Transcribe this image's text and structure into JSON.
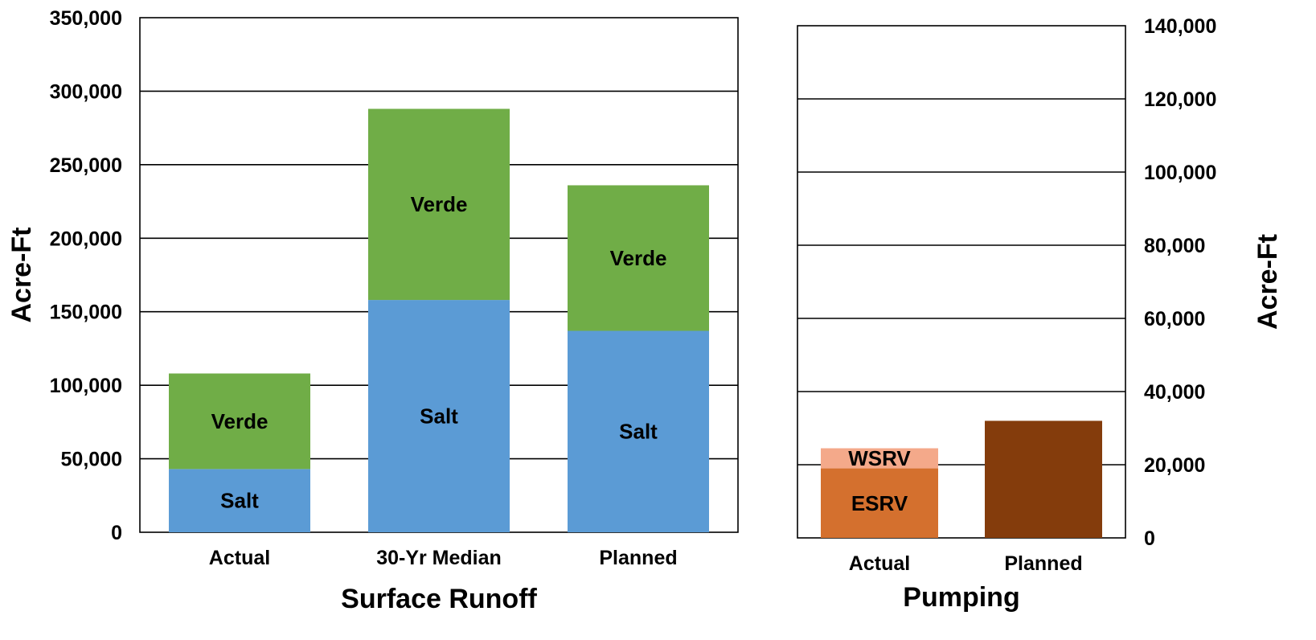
{
  "chart_data": [
    {
      "type": "bar",
      "stacked": true,
      "xlabel": "Surface Runoff",
      "ylabel": "Acre-Ft",
      "ylim": [
        0,
        350000
      ],
      "yticks": [
        "0",
        "50,000",
        "100,000",
        "150,000",
        "200,000",
        "250,000",
        "300,000",
        "350,000"
      ],
      "ytick_values": [
        0,
        50000,
        100000,
        150000,
        200000,
        250000,
        300000,
        350000
      ],
      "y_axis_side": "left",
      "grid": true,
      "categories": [
        "Actual",
        "30-Yr Median",
        "Planned"
      ],
      "series": [
        {
          "name": "Salt",
          "color": "#5b9bd5",
          "values": [
            43000,
            158000,
            137000
          ],
          "labels": [
            "Salt",
            "Salt",
            "Salt"
          ]
        },
        {
          "name": "Verde",
          "color": "#70ad47",
          "values": [
            65000,
            130000,
            99000
          ],
          "labels": [
            "Verde",
            "Verde",
            "Verde"
          ]
        }
      ]
    },
    {
      "type": "bar",
      "stacked": true,
      "xlabel": "Pumping",
      "ylabel": "Acre-Ft",
      "ylim": [
        0,
        140000
      ],
      "yticks": [
        "0",
        "20,000",
        "40,000",
        "60,000",
        "80,000",
        "100,000",
        "120,000",
        "140,000"
      ],
      "ytick_values": [
        0,
        20000,
        40000,
        60000,
        80000,
        100000,
        120000,
        140000
      ],
      "y_axis_side": "right",
      "grid": true,
      "categories": [
        "Actual",
        "Planned"
      ],
      "series": [
        {
          "name": "ESRV",
          "color": "#d4702e",
          "values": [
            19000,
            0
          ],
          "labels": [
            "ESRV",
            ""
          ]
        },
        {
          "name": "WSRV",
          "color": "#f4a98a",
          "values": [
            5500,
            0
          ],
          "labels": [
            "WSRV",
            ""
          ]
        },
        {
          "name": "",
          "color": "#843c0c",
          "values": [
            0,
            32000
          ],
          "labels": [
            "",
            ""
          ]
        }
      ]
    }
  ]
}
